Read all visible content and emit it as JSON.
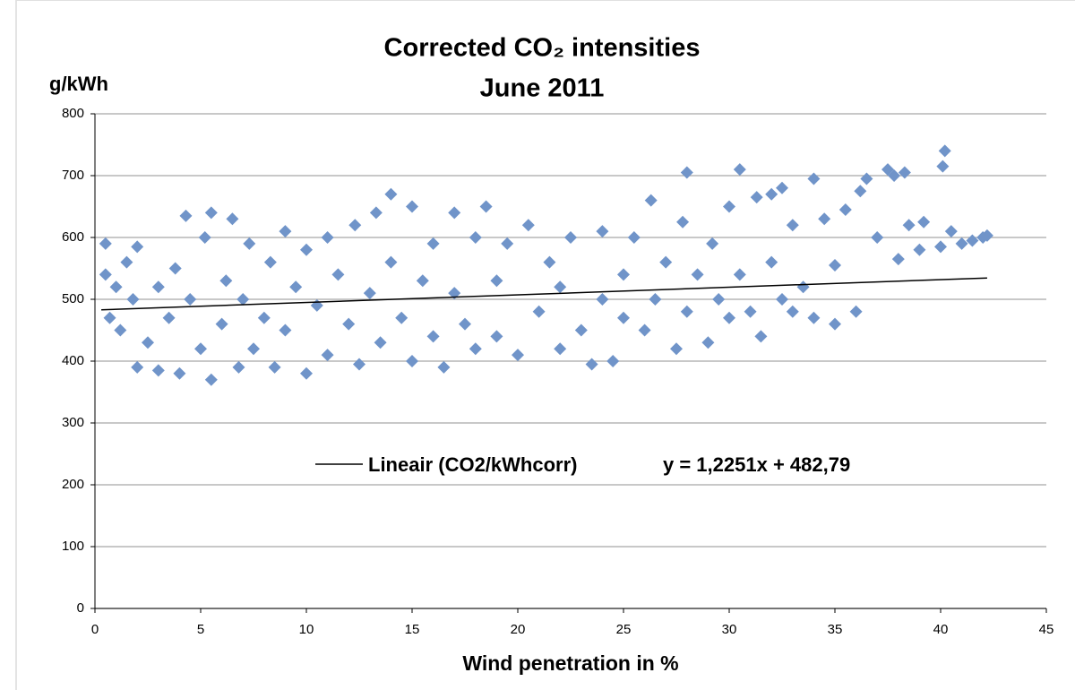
{
  "chart_data": {
    "type": "scatter",
    "title": "Corrected CO₂ intensities",
    "subtitle": "June 2011",
    "y_label": "g/kWh",
    "x_label": "Wind penetration in %",
    "equation": "y = 1,2251x + 482,79",
    "xlim": [
      0,
      45
    ],
    "xticks": [
      0,
      5,
      10,
      15,
      20,
      25,
      30,
      35,
      40,
      45
    ],
    "ylim": [
      0,
      800
    ],
    "yticks": [
      0,
      100,
      200,
      300,
      400,
      500,
      600,
      700,
      800
    ],
    "grid": true,
    "series": [
      {
        "color": "#7094c9",
        "x": [
          0.5,
          0.5,
          0.7,
          1,
          1.2,
          1.5,
          1.8,
          2,
          2,
          2.5,
          3,
          3,
          3.5,
          3.8,
          4,
          4.3,
          4.5,
          5,
          5.2,
          5.5,
          5.5,
          6,
          6.2,
          6.5,
          6.8,
          7,
          7.3,
          7.5,
          8,
          8.3,
          8.5,
          9,
          9,
          9.5,
          10,
          10,
          10.5,
          11,
          11,
          11.5,
          12,
          12.3,
          12.5,
          13,
          13.3,
          13.5,
          14,
          14,
          14.5,
          15,
          15,
          15.5,
          16,
          16,
          16.5,
          17,
          17,
          17.5,
          18,
          18,
          18.5,
          19,
          19,
          19.5,
          20,
          20.5,
          21,
          21.5,
          22,
          22,
          22.5,
          23,
          23.5,
          24,
          24,
          24.5,
          25,
          25,
          25.5,
          26,
          26.3,
          26.5,
          27,
          27.5,
          27.8,
          28,
          28,
          28.5,
          29,
          29.2,
          29.5,
          30,
          30,
          30.5,
          30.5,
          31,
          31.3,
          31.5,
          32,
          32,
          32.5,
          32.5,
          33,
          33,
          33.5,
          34,
          34,
          34.5,
          35,
          35,
          35.5,
          36,
          36.2,
          36.5,
          37,
          37.5,
          37.8,
          38,
          38.3,
          38.5,
          39,
          39.2,
          40,
          40.1,
          40.2,
          40.5,
          41,
          41.5,
          42,
          42.2
        ],
        "values": [
          540,
          590,
          470,
          520,
          450,
          560,
          500,
          390,
          585,
          430,
          520,
          385,
          470,
          550,
          380,
          635,
          500,
          420,
          600,
          370,
          640,
          460,
          530,
          630,
          390,
          500,
          590,
          420,
          470,
          560,
          390,
          610,
          450,
          520,
          380,
          580,
          490,
          600,
          410,
          540,
          460,
          620,
          395,
          510,
          640,
          430,
          670,
          560,
          470,
          650,
          400,
          530,
          590,
          440,
          390,
          640,
          510,
          460,
          600,
          420,
          650,
          530,
          440,
          590,
          410,
          620,
          480,
          560,
          420,
          520,
          600,
          450,
          395,
          610,
          500,
          400,
          540,
          470,
          600,
          450,
          660,
          500,
          560,
          420,
          625,
          705,
          480,
          540,
          430,
          590,
          500,
          650,
          470,
          710,
          540,
          480,
          665,
          440,
          560,
          670,
          680,
          500,
          620,
          480,
          520,
          695,
          470,
          630,
          460,
          555,
          645,
          480,
          675,
          695,
          600,
          710,
          700,
          565,
          705,
          620,
          580,
          625,
          585,
          715,
          740,
          610,
          590,
          595,
          600,
          603
        ]
      },
      {
        "name": "Lineair (CO2/kWhcorr)",
        "color": "#000000",
        "x": [
          0.3,
          42.2
        ],
        "values": [
          483,
          534.5
        ]
      }
    ]
  }
}
